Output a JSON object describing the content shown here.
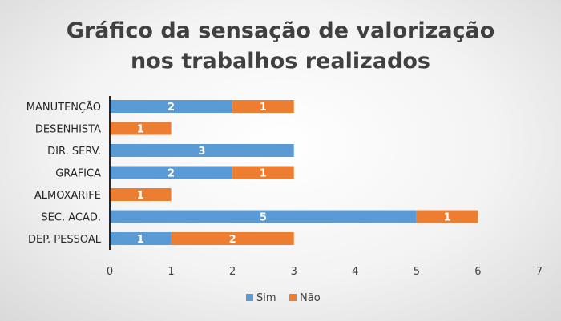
{
  "chart_data": {
    "type": "bar",
    "orientation": "horizontal",
    "stacked": true,
    "title_lines": [
      "Gráfico da sensação de valorização",
      "nos trabalhos realizados"
    ],
    "categories": [
      "MANUTENÇÃO",
      "DESENHISTA",
      "DIR. SERV.",
      "GRAFICA",
      "ALMOXARIFE",
      "SEC. ACAD.",
      "DEP. PESSOAL"
    ],
    "series": [
      {
        "name": "Sim",
        "color": "#5b9bd5",
        "values": [
          2,
          0,
          3,
          2,
          0,
          5,
          1
        ]
      },
      {
        "name": "Não",
        "color": "#ed7d31",
        "values": [
          1,
          1,
          0,
          1,
          1,
          1,
          2
        ]
      }
    ],
    "xlim": [
      0,
      7
    ],
    "xticks": [
      "0",
      "1",
      "2",
      "3",
      "4",
      "5",
      "6",
      "7"
    ],
    "xlabel": "",
    "ylabel": "",
    "grid": false,
    "legend": "bottom"
  }
}
